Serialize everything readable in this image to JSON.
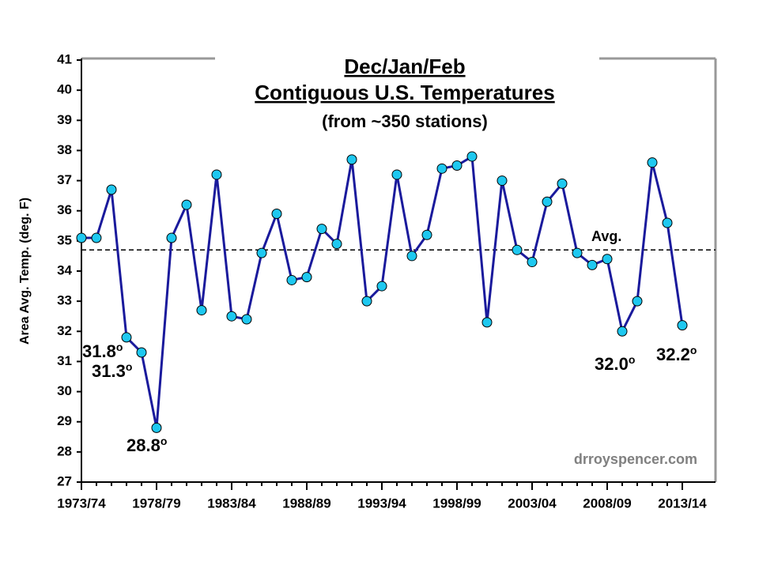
{
  "chart_data": {
    "type": "line",
    "title": [
      "Dec/Jan/Feb",
      "Contiguous U.S. Temperatures"
    ],
    "subtitle": "(from ~350 stations)",
    "y_label": "Area Avg. Temp. (deg. F)",
    "categories": [
      "1973/74",
      null,
      null,
      null,
      null,
      "1978/79",
      null,
      null,
      null,
      null,
      "1983/84",
      null,
      null,
      null,
      null,
      "1988/89",
      null,
      null,
      null,
      null,
      "1993/94",
      null,
      null,
      null,
      null,
      "1998/99",
      null,
      null,
      null,
      null,
      "2003/04",
      null,
      null,
      null,
      null,
      "2008/09",
      null,
      null,
      null,
      null,
      "2013/14"
    ],
    "series": [
      {
        "name": "Temperature",
        "color": "#1a1a9c",
        "marker_color": "#1ec8f0",
        "values": [
          35.1,
          35.1,
          36.7,
          31.8,
          31.3,
          28.8,
          35.1,
          36.2,
          32.7,
          37.2,
          32.5,
          32.4,
          34.6,
          35.9,
          33.7,
          33.8,
          35.4,
          34.9,
          37.7,
          33.0,
          33.5,
          37.2,
          34.5,
          35.2,
          37.4,
          37.5,
          37.8,
          32.3,
          37.0,
          34.7,
          34.3,
          36.3,
          36.9,
          34.6,
          34.2,
          34.4,
          32.0,
          33.0,
          37.6,
          35.6,
          32.2
        ]
      }
    ],
    "average": 34.7,
    "average_label": "Avg.",
    "annotations": [
      {
        "text": "31.8",
        "degree": "o"
      },
      {
        "text": "31.3",
        "degree": "o"
      },
      {
        "text": "28.8",
        "degree": "o"
      },
      {
        "text": "32.0",
        "degree": "o"
      },
      {
        "text": "32.2",
        "degree": "o"
      }
    ],
    "watermark": "drroyspencer.com",
    "ylim": [
      27,
      41
    ],
    "yticks": [
      27,
      28,
      29,
      30,
      31,
      32,
      33,
      34,
      35,
      36,
      37,
      38,
      39,
      40,
      41
    ]
  }
}
